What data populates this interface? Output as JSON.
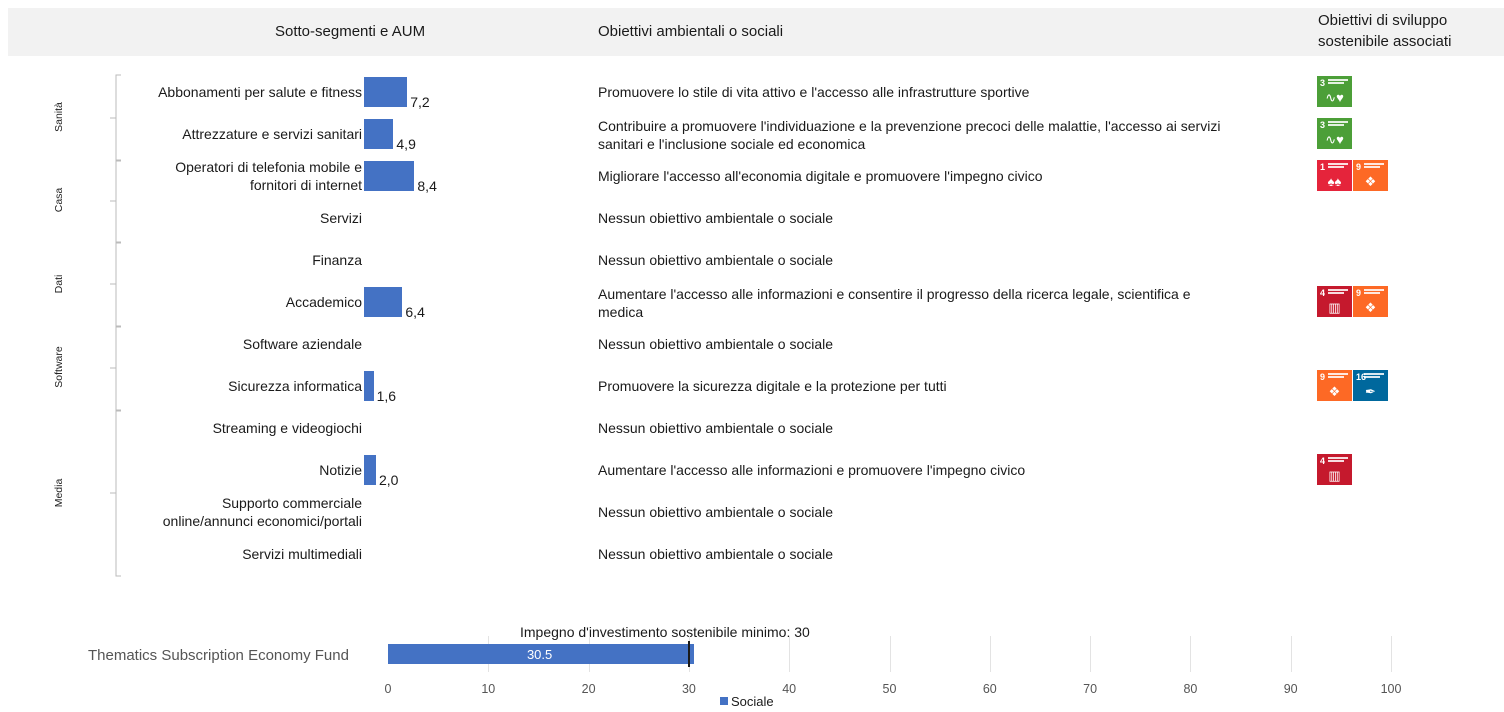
{
  "header": {
    "col1": "Sotto-segmenti e AUM",
    "col2": "Obiettivi ambientali o sociali",
    "col3_line1": "Obiettivi di sviluppo",
    "col3_line2": "sostenibile associati"
  },
  "groups": [
    "Sanità",
    "Casa",
    "Dati",
    "Software",
    "Media"
  ],
  "rows": [
    {
      "label1": "Abbonamenti per salute e fitness",
      "label2": "",
      "value": 7.2,
      "value_text": "7,2",
      "objective1": "Promuovere lo stile di vita attivo e l'accesso alle infrastrutture sportive",
      "objective2": "",
      "sdgs": [
        "3"
      ]
    },
    {
      "label1": "Attrezzature e servizi sanitari",
      "label2": "",
      "value": 4.9,
      "value_text": "4,9",
      "objective1": "Contribuire a promuovere l'individuazione e la prevenzione precoci delle malattie, l'accesso ai servizi",
      "objective2": "sanitari e l'inclusione sociale ed economica",
      "sdgs": [
        "3"
      ]
    },
    {
      "label1": "Operatori di telefonia mobile e",
      "label2": "fornitori di internet",
      "value": 8.4,
      "value_text": "8,4",
      "objective1": "Migliorare l'accesso all'economia digitale e promuovere l'impegno civico",
      "objective2": "",
      "sdgs": [
        "1",
        "9"
      ]
    },
    {
      "label1": "Servizi",
      "label2": "",
      "value": null,
      "value_text": "",
      "objective1": "Nessun obiettivo ambientale o sociale",
      "objective2": "",
      "sdgs": []
    },
    {
      "label1": "Finanza",
      "label2": "",
      "value": null,
      "value_text": "",
      "objective1": "Nessun obiettivo ambientale o sociale",
      "objective2": "",
      "sdgs": []
    },
    {
      "label1": "Accademico",
      "label2": "",
      "value": 6.4,
      "value_text": "6,4",
      "objective1": "Aumentare l'accesso alle informazioni e consentire il progresso della ricerca legale, scientifica e",
      "objective2": "medica",
      "sdgs": [
        "4",
        "9"
      ]
    },
    {
      "label1": "Software aziendale",
      "label2": "",
      "value": null,
      "value_text": "",
      "objective1": "Nessun obiettivo ambientale o sociale",
      "objective2": "",
      "sdgs": []
    },
    {
      "label1": "Sicurezza informatica",
      "label2": "",
      "value": 1.6,
      "value_text": "1,6",
      "objective1": "Promuovere la sicurezza digitale e la protezione per tutti",
      "objective2": "",
      "sdgs": [
        "9",
        "16"
      ]
    },
    {
      "label1": "Streaming e videogiochi",
      "label2": "",
      "value": null,
      "value_text": "",
      "objective1": "Nessun obiettivo ambientale o sociale",
      "objective2": "",
      "sdgs": []
    },
    {
      "label1": "Notizie",
      "label2": "",
      "value": 2.0,
      "value_text": "2,0",
      "objective1": "Aumentare l'accesso alle informazioni e promuovere l'impegno civico",
      "objective2": "",
      "sdgs": [
        "4"
      ]
    },
    {
      "label1": "Supporto commerciale",
      "label2": "online/annunci economici/portali",
      "value": null,
      "value_text": "",
      "objective1": "Nessun obiettivo ambientale o sociale",
      "objective2": "",
      "sdgs": []
    },
    {
      "label1": "Servizi multimediali",
      "label2": "",
      "value": null,
      "value_text": "",
      "objective1": "Nessun obiettivo ambientale o sociale",
      "objective2": "",
      "sdgs": []
    }
  ],
  "sdg_colors": {
    "1": "#e5243b",
    "3": "#4c9f38",
    "4": "#c5192d",
    "9": "#fd6925",
    "16": "#00689d"
  },
  "sdg_icons": {
    "1": "people-icon",
    "3": "heartbeat-icon",
    "4": "book-icon",
    "9": "cubes-icon",
    "16": "dove-icon"
  },
  "chart_data": [
    {
      "type": "bar",
      "orientation": "horizontal",
      "categories": [
        "Abbonamenti per salute e fitness",
        "Attrezzature e servizi sanitari",
        "Operatori di telefonia mobile e fornitori di internet",
        "Servizi",
        "Finanza",
        "Accademico",
        "Software aziendale",
        "Sicurezza informatica",
        "Streaming e videogiochi",
        "Notizie",
        "Supporto commerciale online/annunci economici/portali",
        "Servizi multimediali"
      ],
      "values": [
        7.2,
        4.9,
        8.4,
        null,
        null,
        6.4,
        null,
        1.6,
        null,
        2.0,
        null,
        null
      ],
      "color": "#4472c4"
    },
    {
      "type": "bar",
      "orientation": "horizontal",
      "categories": [
        "Thematics Subscription Economy Fund"
      ],
      "series": [
        {
          "name": "Sociale",
          "values": [
            30.5
          ]
        }
      ],
      "value_label": "30.5",
      "annotation": "Impegno d'investimento sostenibile minimo: 30",
      "threshold": 30,
      "xlim": [
        0,
        100
      ],
      "xticks": [
        "0",
        "10",
        "20",
        "30",
        "40",
        "50",
        "60",
        "70",
        "80",
        "90",
        "100"
      ],
      "grid": true,
      "legend": "bottom",
      "color": "#4472c4"
    }
  ]
}
